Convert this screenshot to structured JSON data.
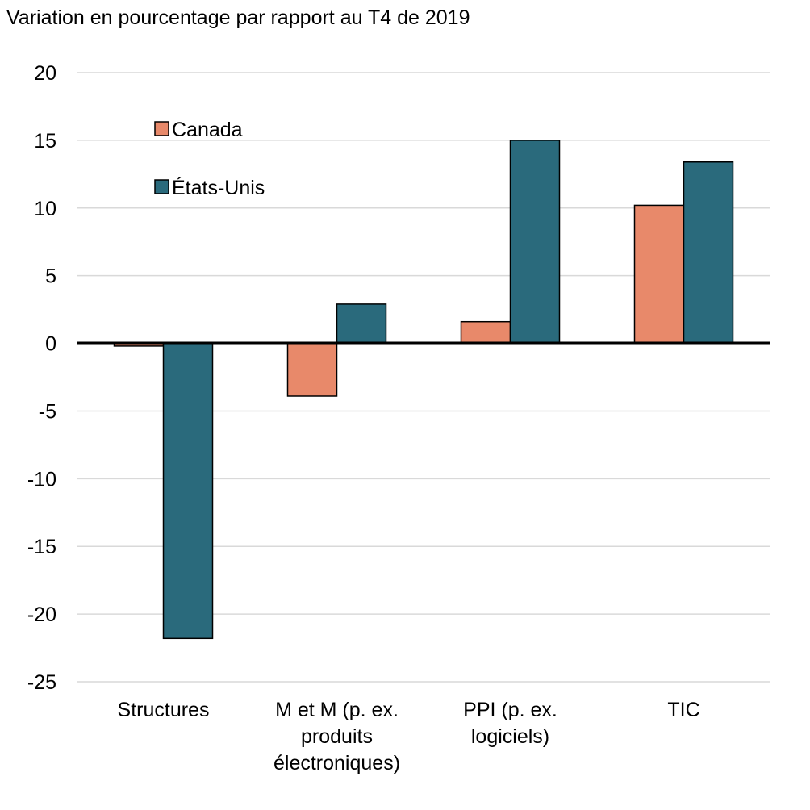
{
  "chart_data": {
    "type": "bar",
    "title": "Variation en pourcentage par rapport au T4 de 2019",
    "xlabel": "",
    "ylabel": "",
    "categories": [
      [
        "Structures"
      ],
      [
        "M et M (p. ex.",
        "produits",
        "électroniques)"
      ],
      [
        "PPI (p. ex.",
        "logiciels)"
      ],
      [
        "TIC"
      ]
    ],
    "series": [
      {
        "name": "Canada",
        "color": "#E8896A",
        "values": [
          -0.2,
          -3.9,
          1.6,
          10.2
        ]
      },
      {
        "name": "États-Unis",
        "color": "#2A6A7C",
        "values": [
          -21.8,
          2.9,
          15.0,
          13.4
        ]
      }
    ],
    "ylim": [
      -25,
      20
    ],
    "yticks": [
      "20",
      "15",
      "10",
      "5",
      "0",
      "-5",
      "-10",
      "-15",
      "-20",
      "-25"
    ],
    "grid": true,
    "legend_position": "top-left"
  }
}
